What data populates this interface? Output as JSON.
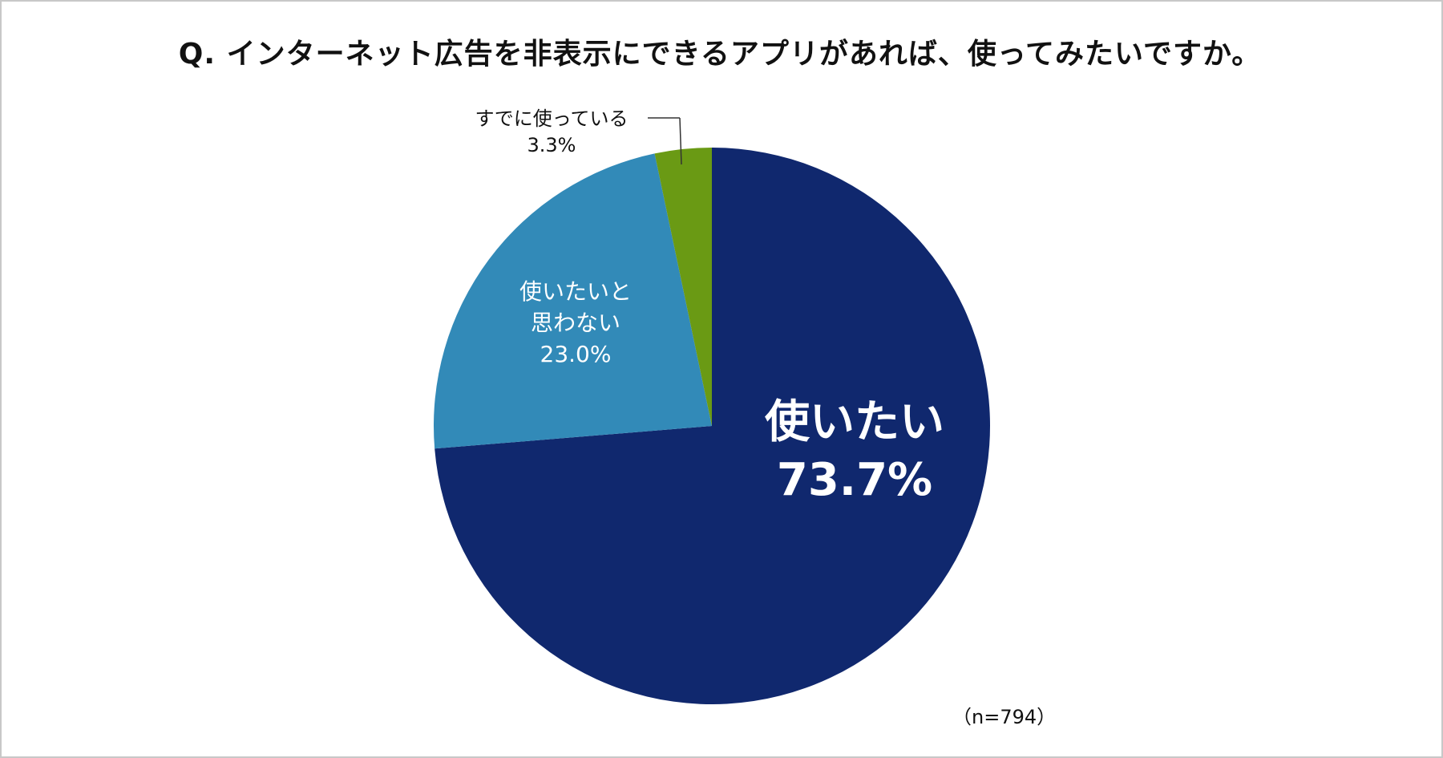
{
  "chart_data": {
    "type": "pie",
    "title": "Q. インターネット広告を非表示にできるアプリがあれば、使ってみたいですか。",
    "slices": [
      {
        "label": [
          "使いたい"
        ],
        "value": 73.7,
        "value_label": "73.7%",
        "color": "#10286e"
      },
      {
        "label": [
          "使いたいと",
          "思わない"
        ],
        "value": 23.0,
        "value_label": "23.0%",
        "color": "#328ab8"
      },
      {
        "label": [
          "すでに使っている"
        ],
        "value": 3.3,
        "value_label": "3.3%",
        "color": "#6a9a14"
      }
    ],
    "note": "（n=794）"
  }
}
